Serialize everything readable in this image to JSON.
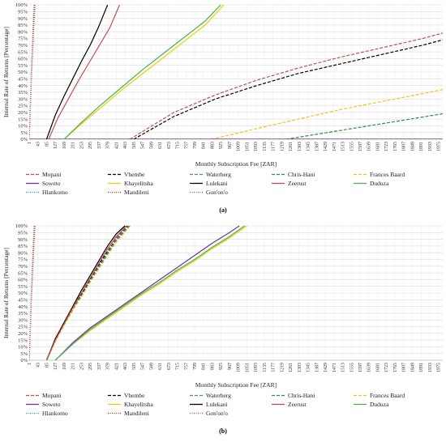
{
  "chart_data": [
    {
      "type": "line",
      "caption": "(a)",
      "xlabel": "Monthly Subscription Fee [ZAR]",
      "ylabel": "Internal Rate of Returns [Percentage]",
      "ylim": [
        0,
        100
      ],
      "xlim": [
        1,
        1996
      ],
      "yticks": [
        "0%",
        "5%",
        "10%",
        "15%",
        "20%",
        "25%",
        "30%",
        "35%",
        "40%",
        "45%",
        "50%",
        "55%",
        "60%",
        "65%",
        "70%",
        "75%",
        "80%",
        "85%",
        "90%",
        "95%",
        "100%"
      ],
      "xticks": [
        "1",
        "43",
        "85",
        "127",
        "169",
        "211",
        "253",
        "295",
        "337",
        "379",
        "421",
        "463",
        "505",
        "547",
        "589",
        "631",
        "673",
        "715",
        "757",
        "799",
        "841",
        "883",
        "925",
        "967",
        "1009",
        "1051",
        "1093",
        "1135",
        "1177",
        "1219",
        "1261",
        "1303",
        "1345",
        "1387",
        "1429",
        "1471",
        "1513",
        "1555",
        "1597",
        "1639",
        "1681",
        "1723",
        "1765",
        "1807",
        "1849",
        "1891",
        "1933",
        "1975"
      ],
      "grid": true,
      "legend_position": "bottom",
      "series": [
        {
          "name": "Mopani",
          "color": "#C0504D",
          "dash": "4,2",
          "x": [
            487,
            700,
            900,
            1100,
            1300,
            1500,
            1700,
            1900,
            1996
          ],
          "y": [
            0,
            20,
            33,
            44,
            53,
            61,
            68,
            75,
            79
          ]
        },
        {
          "name": "Vhembe",
          "color": "#000000",
          "dash": "4,2",
          "x": [
            505,
            700,
            900,
            1100,
            1300,
            1500,
            1700,
            1900,
            1996
          ],
          "y": [
            0,
            17,
            30,
            40,
            49,
            56,
            63,
            70,
            74
          ]
        },
        {
          "name": "Waterberg",
          "color": "#4F81BD",
          "dash": "4,2",
          "x": [
            1,
            200,
            400,
            600,
            800,
            1000,
            1200,
            1400,
            1600,
            1800,
            1996
          ],
          "y": [
            0,
            0,
            0,
            0,
            0,
            0,
            0,
            0,
            0,
            0,
            0
          ]
        },
        {
          "name": "Chris-Hani",
          "color": "#2E8B57",
          "dash": "4,2",
          "x": [
            1240,
            1400,
            1600,
            1800,
            1996
          ],
          "y": [
            0,
            4,
            9,
            14,
            19
          ]
        },
        {
          "name": "Frances Baard",
          "color": "#F2C314",
          "dash": "4,2",
          "x": [
            880,
            1100,
            1300,
            1500,
            1700,
            1900,
            1996
          ],
          "y": [
            0,
            8,
            15,
            22,
            28,
            34,
            37
          ]
        },
        {
          "name": "Soweto",
          "color": "#7030A0",
          "dash": "",
          "x": [
            1,
            200,
            400,
            600,
            800,
            1000,
            1200,
            1400,
            1600,
            1800,
            1996
          ],
          "y": [
            0,
            0,
            0,
            0,
            0,
            0,
            0,
            0,
            0,
            0,
            0
          ]
        },
        {
          "name": "Khayelitsha",
          "color": "#E6D200",
          "dash": "",
          "x": [
            169,
            250,
            350,
            450,
            550,
            650,
            750,
            850,
            940
          ],
          "y": [
            0,
            11,
            24,
            37,
            49,
            61,
            73,
            85,
            100
          ]
        },
        {
          "name": "Lulekani",
          "color": "#000000",
          "dash": "",
          "x": [
            85,
            127,
            169,
            211,
            253,
            295,
            337,
            379
          ],
          "y": [
            0,
            18,
            32,
            45,
            58,
            70,
            84,
            100
          ]
        },
        {
          "name": "Zeerust",
          "color": "#C0504D",
          "dash": "",
          "x": [
            95,
            140,
            190,
            240,
            290,
            340,
            390,
            437
          ],
          "y": [
            0,
            16,
            30,
            44,
            57,
            70,
            83,
            100
          ]
        },
        {
          "name": "Duduza",
          "color": "#4CB050",
          "dash": "",
          "x": [
            169,
            250,
            350,
            450,
            550,
            650,
            750,
            850,
            925
          ],
          "y": [
            0,
            12,
            26,
            39,
            52,
            64,
            76,
            88,
            100
          ]
        },
        {
          "name": "Hlankomo",
          "color": "#2F8F8F",
          "dash": "1,1.5",
          "x": [
            1,
            5,
            10,
            15,
            20,
            25
          ],
          "y": [
            0,
            20,
            45,
            65,
            85,
            100
          ]
        },
        {
          "name": "Mandileni",
          "color": "#8B4513",
          "dash": "1,1.5",
          "x": [
            1,
            6,
            11,
            16,
            21,
            27
          ],
          "y": [
            0,
            20,
            45,
            65,
            85,
            100
          ]
        },
        {
          "name": "Gon'on'o",
          "color": "#C0504D",
          "dash": "1,1.5",
          "x": [
            1,
            6,
            12,
            18,
            24,
            30
          ],
          "y": [
            0,
            20,
            45,
            65,
            85,
            100
          ]
        }
      ]
    },
    {
      "type": "line",
      "caption": "(b)",
      "xlabel": "Monthly Subscription Fee [ZAR]",
      "ylabel": "Internal Rate of Returns [Percentage]",
      "ylim": [
        0,
        100
      ],
      "xlim": [
        1,
        1996
      ],
      "yticks": [
        "0%",
        "5%",
        "10%",
        "15%",
        "20%",
        "25%",
        "30%",
        "35%",
        "40%",
        "45%",
        "50%",
        "55%",
        "60%",
        "65%",
        "70%",
        "75%",
        "80%",
        "85%",
        "90%",
        "95%",
        "100%"
      ],
      "xticks": [
        "1",
        "43",
        "85",
        "127",
        "169",
        "211",
        "253",
        "295",
        "337",
        "379",
        "421",
        "463",
        "505",
        "547",
        "589",
        "631",
        "673",
        "715",
        "757",
        "799",
        "841",
        "883",
        "925",
        "967",
        "1009",
        "1051",
        "1093",
        "1135",
        "1177",
        "1219",
        "1261",
        "1303",
        "1345",
        "1387",
        "1429",
        "1471",
        "1513",
        "1555",
        "1597",
        "1639",
        "1681",
        "1723",
        "1765",
        "1807",
        "1849",
        "1891",
        "1933",
        "1975"
      ],
      "grid": true,
      "legend_position": "bottom",
      "series": [
        {
          "name": "Mopani",
          "color": "#C0504D",
          "dash": "4,2",
          "x": [
            85,
            127,
            169,
            211,
            253,
            295,
            337,
            379,
            421,
            475
          ],
          "y": [
            0,
            15,
            27,
            38,
            49,
            60,
            71,
            81,
            91,
            100
          ]
        },
        {
          "name": "Vhembe",
          "color": "#000000",
          "dash": "4,2",
          "x": [
            85,
            127,
            169,
            211,
            253,
            295,
            337,
            379,
            421,
            478
          ],
          "y": [
            0,
            15,
            27,
            38,
            49,
            60,
            71,
            81,
            90,
            100
          ]
        },
        {
          "name": "Waterberg",
          "color": "#4F81BD",
          "dash": "4,2",
          "x": [
            85,
            127,
            169,
            211,
            253,
            295,
            337,
            379,
            421,
            480
          ],
          "y": [
            0,
            15,
            27,
            38,
            48,
            59,
            70,
            80,
            90,
            100
          ]
        },
        {
          "name": "Chris-Hani",
          "color": "#2E8B57",
          "dash": "4,2",
          "x": [
            85,
            127,
            169,
            211,
            253,
            295,
            337,
            379,
            421,
            485
          ],
          "y": [
            0,
            14,
            26,
            37,
            48,
            58,
            69,
            79,
            89,
            100
          ]
        },
        {
          "name": "Frances Baard",
          "color": "#F2C314",
          "dash": "4,2",
          "x": [
            85,
            127,
            169,
            211,
            253,
            295,
            337,
            379,
            421,
            489
          ],
          "y": [
            0,
            14,
            26,
            37,
            47,
            58,
            68,
            78,
            88,
            100
          ]
        },
        {
          "name": "Soweto",
          "color": "#7030A0",
          "dash": "",
          "x": [
            127,
            211,
            295,
            379,
            463,
            547,
            631,
            715,
            799,
            883,
            967,
            1015
          ],
          "y": [
            0,
            13,
            24,
            33,
            42,
            51,
            60,
            69,
            78,
            87,
            95,
            100
          ]
        },
        {
          "name": "Khayelitsha",
          "color": "#E6D200",
          "dash": "",
          "x": [
            127,
            211,
            295,
            379,
            463,
            547,
            631,
            715,
            799,
            883,
            967,
            1051
          ],
          "y": [
            0,
            12,
            22,
            31,
            40,
            49,
            57,
            66,
            74,
            83,
            91,
            100
          ]
        },
        {
          "name": "Lulekani",
          "color": "#000000",
          "dash": "",
          "x": [
            85,
            127,
            169,
            211,
            253,
            295,
            337,
            379,
            421,
            463
          ],
          "y": [
            0,
            16,
            28,
            40,
            52,
            63,
            74,
            85,
            94,
            100
          ]
        },
        {
          "name": "Zeerust",
          "color": "#C0504D",
          "dash": "",
          "x": [
            85,
            127,
            169,
            211,
            253,
            295,
            337,
            379,
            421,
            470
          ],
          "y": [
            0,
            15,
            27,
            39,
            50,
            61,
            72,
            83,
            92,
            100
          ]
        },
        {
          "name": "Duduza",
          "color": "#4CB050",
          "dash": "",
          "x": [
            127,
            211,
            295,
            379,
            463,
            547,
            631,
            715,
            799,
            883,
            967,
            1040
          ],
          "y": [
            0,
            12,
            23,
            32,
            41,
            50,
            58,
            67,
            75,
            84,
            92,
            100
          ]
        },
        {
          "name": "Hlankomo",
          "color": "#2F8F8F",
          "dash": "1,1.5",
          "x": [
            1,
            5,
            10,
            15,
            20,
            25
          ],
          "y": [
            0,
            20,
            45,
            65,
            85,
            100
          ]
        },
        {
          "name": "Mandileni",
          "color": "#8B4513",
          "dash": "1,1.5",
          "x": [
            1,
            6,
            11,
            16,
            21,
            27
          ],
          "y": [
            0,
            20,
            45,
            65,
            85,
            100
          ]
        },
        {
          "name": "Gon'on'o",
          "color": "#C0504D",
          "dash": "1,1.5",
          "x": [
            1,
            6,
            12,
            18,
            24,
            30
          ],
          "y": [
            0,
            20,
            45,
            65,
            85,
            100
          ]
        }
      ]
    }
  ]
}
